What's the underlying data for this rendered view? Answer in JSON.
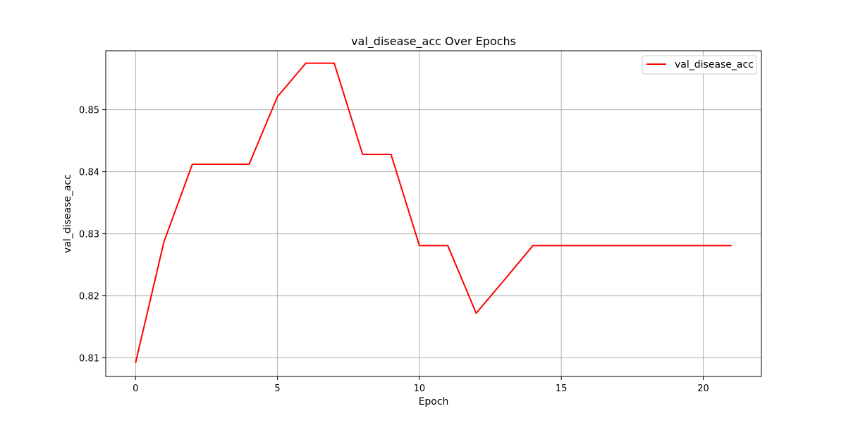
{
  "chart_data": {
    "type": "line",
    "title": "val_disease_acc Over Epochs",
    "xlabel": "Epoch",
    "ylabel": "val_disease_acc",
    "xlim": [
      -1.05,
      22.05
    ],
    "ylim": [
      0.807,
      0.8595
    ],
    "xticks": [
      0,
      5,
      10,
      15,
      20
    ],
    "xtick_labels": [
      "0",
      "5",
      "10",
      "15",
      "20"
    ],
    "yticks": [
      0.81,
      0.82,
      0.83,
      0.84,
      0.85
    ],
    "ytick_labels": [
      "0.81",
      "0.82",
      "0.83",
      "0.84",
      "0.85"
    ],
    "grid": true,
    "legend_position": "upper right",
    "series": [
      {
        "name": "val_disease_acc",
        "color": "#ff0000",
        "x": [
          0,
          1,
          2,
          3,
          4,
          5,
          6,
          7,
          8,
          9,
          10,
          11,
          12,
          13,
          14,
          15,
          16,
          17,
          18,
          19,
          20,
          21
        ],
        "y": [
          0.8092,
          0.8287,
          0.8412,
          0.8412,
          0.8412,
          0.8521,
          0.8575,
          0.8575,
          0.8428,
          0.8428,
          0.8281,
          0.8281,
          0.8172,
          0.8226,
          0.8281,
          0.8281,
          0.8281,
          0.8281,
          0.8281,
          0.8281,
          0.8281,
          0.8281
        ]
      }
    ]
  }
}
